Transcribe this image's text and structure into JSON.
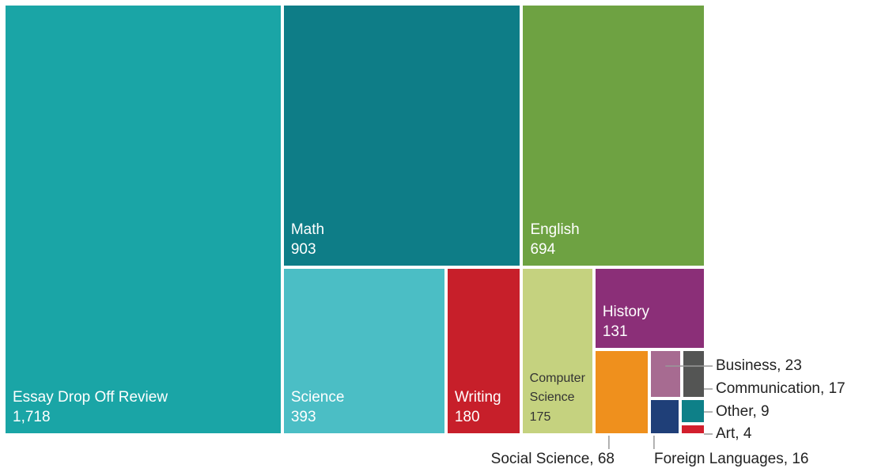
{
  "chart_data": {
    "type": "treemap",
    "categories": [
      "Essay Drop Off Review",
      "Math",
      "English",
      "Science",
      "Writing",
      "Computer Science",
      "History",
      "Social Science",
      "Business",
      "Communication",
      "Foreign Languages",
      "Other",
      "Art"
    ],
    "values": [
      1718,
      903,
      694,
      393,
      180,
      175,
      131,
      68,
      23,
      17,
      16,
      9,
      4
    ],
    "value_labels": [
      "1,718",
      "903",
      "694",
      "393",
      "180",
      "175",
      "131",
      "68",
      "23",
      "17",
      "16",
      "9",
      "4"
    ],
    "colors": [
      "#1aa5a6",
      "#0e7d87",
      "#6ea242",
      "#4bbec5",
      "#c71f2a",
      "#c5d27f",
      "#8b2f78",
      "#ef901d",
      "#a76b91",
      "#545554",
      "#1f3f78",
      "#0e8088",
      "#d21f2d"
    ]
  }
}
